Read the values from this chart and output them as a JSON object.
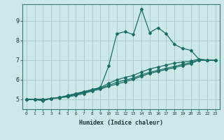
{
  "xlabel": "Humidex (Indice chaleur)",
  "bg_color": "#cce8e8",
  "grid_color": "#aacccc",
  "line_color": "#1a6e66",
  "xlim": [
    -0.5,
    23.5
  ],
  "ylim": [
    4.5,
    9.85
  ],
  "xticks": [
    0,
    1,
    2,
    3,
    4,
    5,
    6,
    7,
    8,
    9,
    10,
    11,
    12,
    13,
    14,
    15,
    16,
    17,
    18,
    19,
    20,
    21,
    22,
    23
  ],
  "yticks": [
    5,
    6,
    7,
    8,
    9
  ],
  "series": [
    {
      "x": [
        0,
        1,
        2,
        3,
        4,
        5,
        6,
        7,
        8,
        9,
        10,
        11,
        12,
        13,
        14,
        15,
        16,
        17,
        18,
        19,
        20,
        21,
        22,
        23
      ],
      "y": [
        5.0,
        5.0,
        4.92,
        5.05,
        5.1,
        5.2,
        5.3,
        5.4,
        5.5,
        5.6,
        6.7,
        8.35,
        8.45,
        8.3,
        9.6,
        8.4,
        8.65,
        8.35,
        7.8,
        7.6,
        7.5,
        7.05,
        7.0,
        7.0
      ]
    },
    {
      "x": [
        0,
        1,
        2,
        3,
        4,
        5,
        6,
        7,
        8,
        9,
        10,
        11,
        12,
        13,
        14,
        15,
        16,
        17,
        18,
        19,
        20,
        21,
        22,
        23
      ],
      "y": [
        5.0,
        5.0,
        4.98,
        5.05,
        5.1,
        5.18,
        5.28,
        5.38,
        5.5,
        5.6,
        5.82,
        6.0,
        6.12,
        6.22,
        6.4,
        6.55,
        6.65,
        6.75,
        6.85,
        6.9,
        6.95,
        7.05,
        7.0,
        7.0
      ]
    },
    {
      "x": [
        0,
        1,
        2,
        3,
        4,
        5,
        6,
        7,
        8,
        9,
        10,
        11,
        12,
        13,
        14,
        15,
        16,
        17,
        18,
        19,
        20,
        21,
        22,
        23
      ],
      "y": [
        5.0,
        5.0,
        5.0,
        5.04,
        5.1,
        5.16,
        5.24,
        5.35,
        5.47,
        5.57,
        5.72,
        5.87,
        5.98,
        6.08,
        6.25,
        6.38,
        6.48,
        6.58,
        6.68,
        6.78,
        6.88,
        7.0,
        7.0,
        7.0
      ]
    },
    {
      "x": [
        0,
        1,
        2,
        3,
        4,
        5,
        6,
        7,
        8,
        9,
        10,
        11,
        12,
        13,
        14,
        15,
        16,
        17,
        18,
        19,
        20,
        21,
        22,
        23
      ],
      "y": [
        5.0,
        5.0,
        5.0,
        5.03,
        5.08,
        5.13,
        5.2,
        5.3,
        5.43,
        5.52,
        5.67,
        5.78,
        5.9,
        6.02,
        6.18,
        6.32,
        6.42,
        6.52,
        6.62,
        6.72,
        6.82,
        7.0,
        7.0,
        7.0
      ]
    }
  ]
}
